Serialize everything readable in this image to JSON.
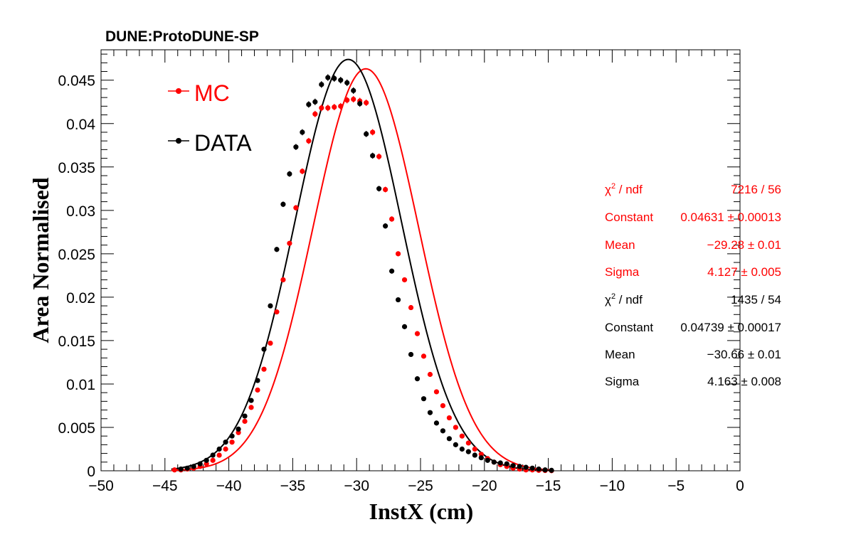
{
  "chart_data": {
    "type": "scatter",
    "title": "DUNE:ProtoDUNE-SP",
    "xlabel": "InstX (cm)",
    "ylabel": "Area Normalised",
    "xlim": [
      -50,
      0
    ],
    "ylim": [
      0,
      0.0485
    ],
    "x_ticks": [
      -50,
      -45,
      -40,
      -35,
      -30,
      -25,
      -20,
      -15,
      -10,
      -5,
      0
    ],
    "x_tick_labels": [
      "−50",
      "−45",
      "−40",
      "−35",
      "−30",
      "−25",
      "−20",
      "−15",
      "−10",
      "−5",
      "0"
    ],
    "y_ticks": [
      0,
      0.005,
      0.01,
      0.015,
      0.02,
      0.025,
      0.03,
      0.035,
      0.04,
      0.045
    ],
    "y_tick_labels": [
      "0",
      "0.005",
      "0.01",
      "0.015",
      "0.02",
      "0.025",
      "0.03",
      "0.035",
      "0.04",
      "0.045"
    ],
    "grid": false,
    "legend_position": "top-left",
    "series": [
      {
        "name": "MC",
        "color": "#ff0000",
        "x": [
          -44.25,
          -43.75,
          -43.25,
          -42.75,
          -42.25,
          -41.75,
          -41.25,
          -40.75,
          -40.25,
          -39.75,
          -39.25,
          -38.75,
          -38.25,
          -37.75,
          -37.25,
          -36.75,
          -36.25,
          -35.75,
          -35.25,
          -34.75,
          -34.25,
          -33.75,
          -33.25,
          -32.75,
          -32.25,
          -31.75,
          -31.25,
          -30.75,
          -30.25,
          -29.75,
          -29.25,
          -28.75,
          -28.25,
          -27.75,
          -27.25,
          -26.75,
          -26.25,
          -25.75,
          -25.25,
          -24.75,
          -24.25,
          -23.75,
          -23.25,
          -22.75,
          -22.25,
          -21.75,
          -21.25,
          -20.75,
          -20.25,
          -19.75,
          -19.25,
          -18.75,
          -18.25,
          -17.75,
          -17.25,
          -16.75,
          -16.25,
          -15.75,
          -15.25,
          -14.75
        ],
        "y": [
          0.0001,
          0.0001,
          0.0002,
          0.0003,
          0.0005,
          0.0008,
          0.0012,
          0.0018,
          0.0025,
          0.0033,
          0.0044,
          0.0057,
          0.0073,
          0.0093,
          0.0117,
          0.0147,
          0.0183,
          0.022,
          0.0262,
          0.0303,
          0.0345,
          0.038,
          0.0411,
          0.0418,
          0.0418,
          0.0419,
          0.042,
          0.0427,
          0.0428,
          0.0426,
          0.0424,
          0.039,
          0.0362,
          0.0324,
          0.029,
          0.025,
          0.022,
          0.0188,
          0.0158,
          0.0132,
          0.0111,
          0.0091,
          0.0075,
          0.0061,
          0.005,
          0.004,
          0.0032,
          0.0025,
          0.0019,
          0.0014,
          0.001,
          0.0007,
          0.0005,
          0.0003,
          0.0002,
          0.0001,
          0.0001,
          5e-05,
          3e-05,
          1e-05
        ],
        "fit": {
          "chi2_ndf": "7216 / 56",
          "constant": "0.04631 ± 0.00013",
          "mean": "−29.28 ± 0.01",
          "sigma": "4.127 ± 0.005",
          "c": 0.04631,
          "mu": -29.28,
          "s": 4.127
        }
      },
      {
        "name": "DATA",
        "color": "#000000",
        "x": [
          -43.75,
          -43.25,
          -42.75,
          -42.25,
          -41.75,
          -41.25,
          -40.75,
          -40.25,
          -39.75,
          -39.25,
          -38.75,
          -38.25,
          -37.75,
          -37.25,
          -36.75,
          -36.25,
          -35.75,
          -35.25,
          -34.75,
          -34.25,
          -33.75,
          -33.25,
          -32.75,
          -32.25,
          -31.75,
          -31.25,
          -30.75,
          -30.25,
          -29.75,
          -29.25,
          -28.75,
          -28.25,
          -27.75,
          -27.25,
          -26.75,
          -26.25,
          -25.75,
          -25.25,
          -24.75,
          -24.25,
          -23.75,
          -23.25,
          -22.75,
          -22.25,
          -21.75,
          -21.25,
          -20.75,
          -20.25,
          -19.75,
          -19.25,
          -18.75,
          -18.25,
          -17.75,
          -17.25,
          -16.75,
          -16.25,
          -15.75,
          -15.25,
          -14.75
        ],
        "y": [
          0.0002,
          0.0003,
          0.0005,
          0.0008,
          0.0012,
          0.0018,
          0.0025,
          0.0033,
          0.004,
          0.0048,
          0.0063,
          0.0081,
          0.0104,
          0.014,
          0.019,
          0.0255,
          0.0307,
          0.0342,
          0.0373,
          0.039,
          0.0422,
          0.0425,
          0.0445,
          0.0453,
          0.0452,
          0.045,
          0.0447,
          0.0438,
          0.0423,
          0.0388,
          0.0363,
          0.0325,
          0.0282,
          0.023,
          0.0197,
          0.0166,
          0.0134,
          0.0106,
          0.0083,
          0.0067,
          0.0055,
          0.0046,
          0.0037,
          0.003,
          0.0025,
          0.0022,
          0.0018,
          0.0015,
          0.0012,
          0.001,
          0.0009,
          0.0008,
          0.0006,
          0.0005,
          0.0004,
          0.0003,
          0.0002,
          0.0001,
          5e-05
        ],
        "fit": {
          "chi2_ndf": "1435 / 54",
          "constant": "0.04739 ± 0.00017",
          "mean": "−30.66 ± 0.01",
          "sigma": "4.163 ± 0.008",
          "c": 0.04739,
          "mu": -30.66,
          "s": 4.163
        }
      }
    ],
    "stats_labels": {
      "chi2": "χ",
      "chi2_sup": "2",
      "chi2_rest": " / ndf",
      "constant": "Constant",
      "mean": "Mean",
      "sigma": "Sigma"
    }
  }
}
